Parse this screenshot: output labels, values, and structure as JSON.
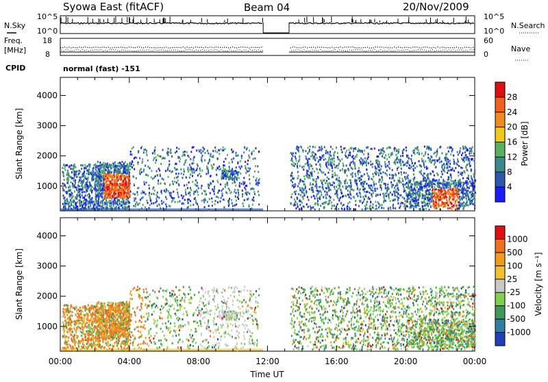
{
  "header": {
    "station": "Syowa East (fitACF)",
    "beam": "Beam 04",
    "date": "20/Nov/2009"
  },
  "status_panels": {
    "nsky_label": "N.Sky",
    "nsky_hi": "10^5",
    "nsky_lo": "10^0",
    "nsearch_label": "N.Search",
    "nsearch_hi": "10^5",
    "nsearch_lo": "10^0",
    "freq_label_1": "Freq.",
    "freq_label_2": "[MHz]",
    "freq_hi": "18",
    "freq_lo": "8",
    "nave_label": "Nave",
    "nave_hi": "60",
    "nave_lo": "0",
    "cpid_label": "CPID",
    "cpid_value": "normal (fast) -151"
  },
  "chart_data": [
    {
      "type": "heatmap",
      "parameter": "Power",
      "ylabel": "Slant Range [km]",
      "ylim": [
        180,
        4600
      ],
      "yticks": [
        "1000",
        "2000",
        "3000",
        "4000"
      ],
      "colorbar_label": "Power [dB]",
      "colorbar_ticks": [
        "4",
        "8",
        "12",
        "16",
        "20",
        "24",
        "28"
      ],
      "colors": [
        "#1b1bff",
        "#2a57b0",
        "#3a8a8a",
        "#58b060",
        "#f2c81a",
        "#f08a1a",
        "#f2601a",
        "#e01010"
      ],
      "data_gap": [
        "11:45",
        "13:15"
      ]
    },
    {
      "type": "heatmap",
      "parameter": "Velocity",
      "xlabel": "Time UT",
      "xticks": [
        "00:00",
        "04:00",
        "08:00",
        "12:00",
        "16:00",
        "20:00",
        "00:00"
      ],
      "ylabel": "Slant Range [km]",
      "ylim": [
        180,
        4600
      ],
      "yticks": [
        "1000",
        "2000",
        "3000",
        "4000"
      ],
      "colorbar_label": "Velocity [m s⁻¹]",
      "colorbar_ticks": [
        "1000",
        "500",
        "100",
        "25",
        "-25",
        "-100",
        "-500",
        "-1000"
      ],
      "colors": [
        "#1f3fbf",
        "#2f7f9f",
        "#3e9a5a",
        "#7fd14a",
        "#c8c8c8",
        "#f2c02a",
        "#f29a1a",
        "#f2701a",
        "#e01010"
      ],
      "data_gap": [
        "11:45",
        "13:15"
      ]
    }
  ]
}
